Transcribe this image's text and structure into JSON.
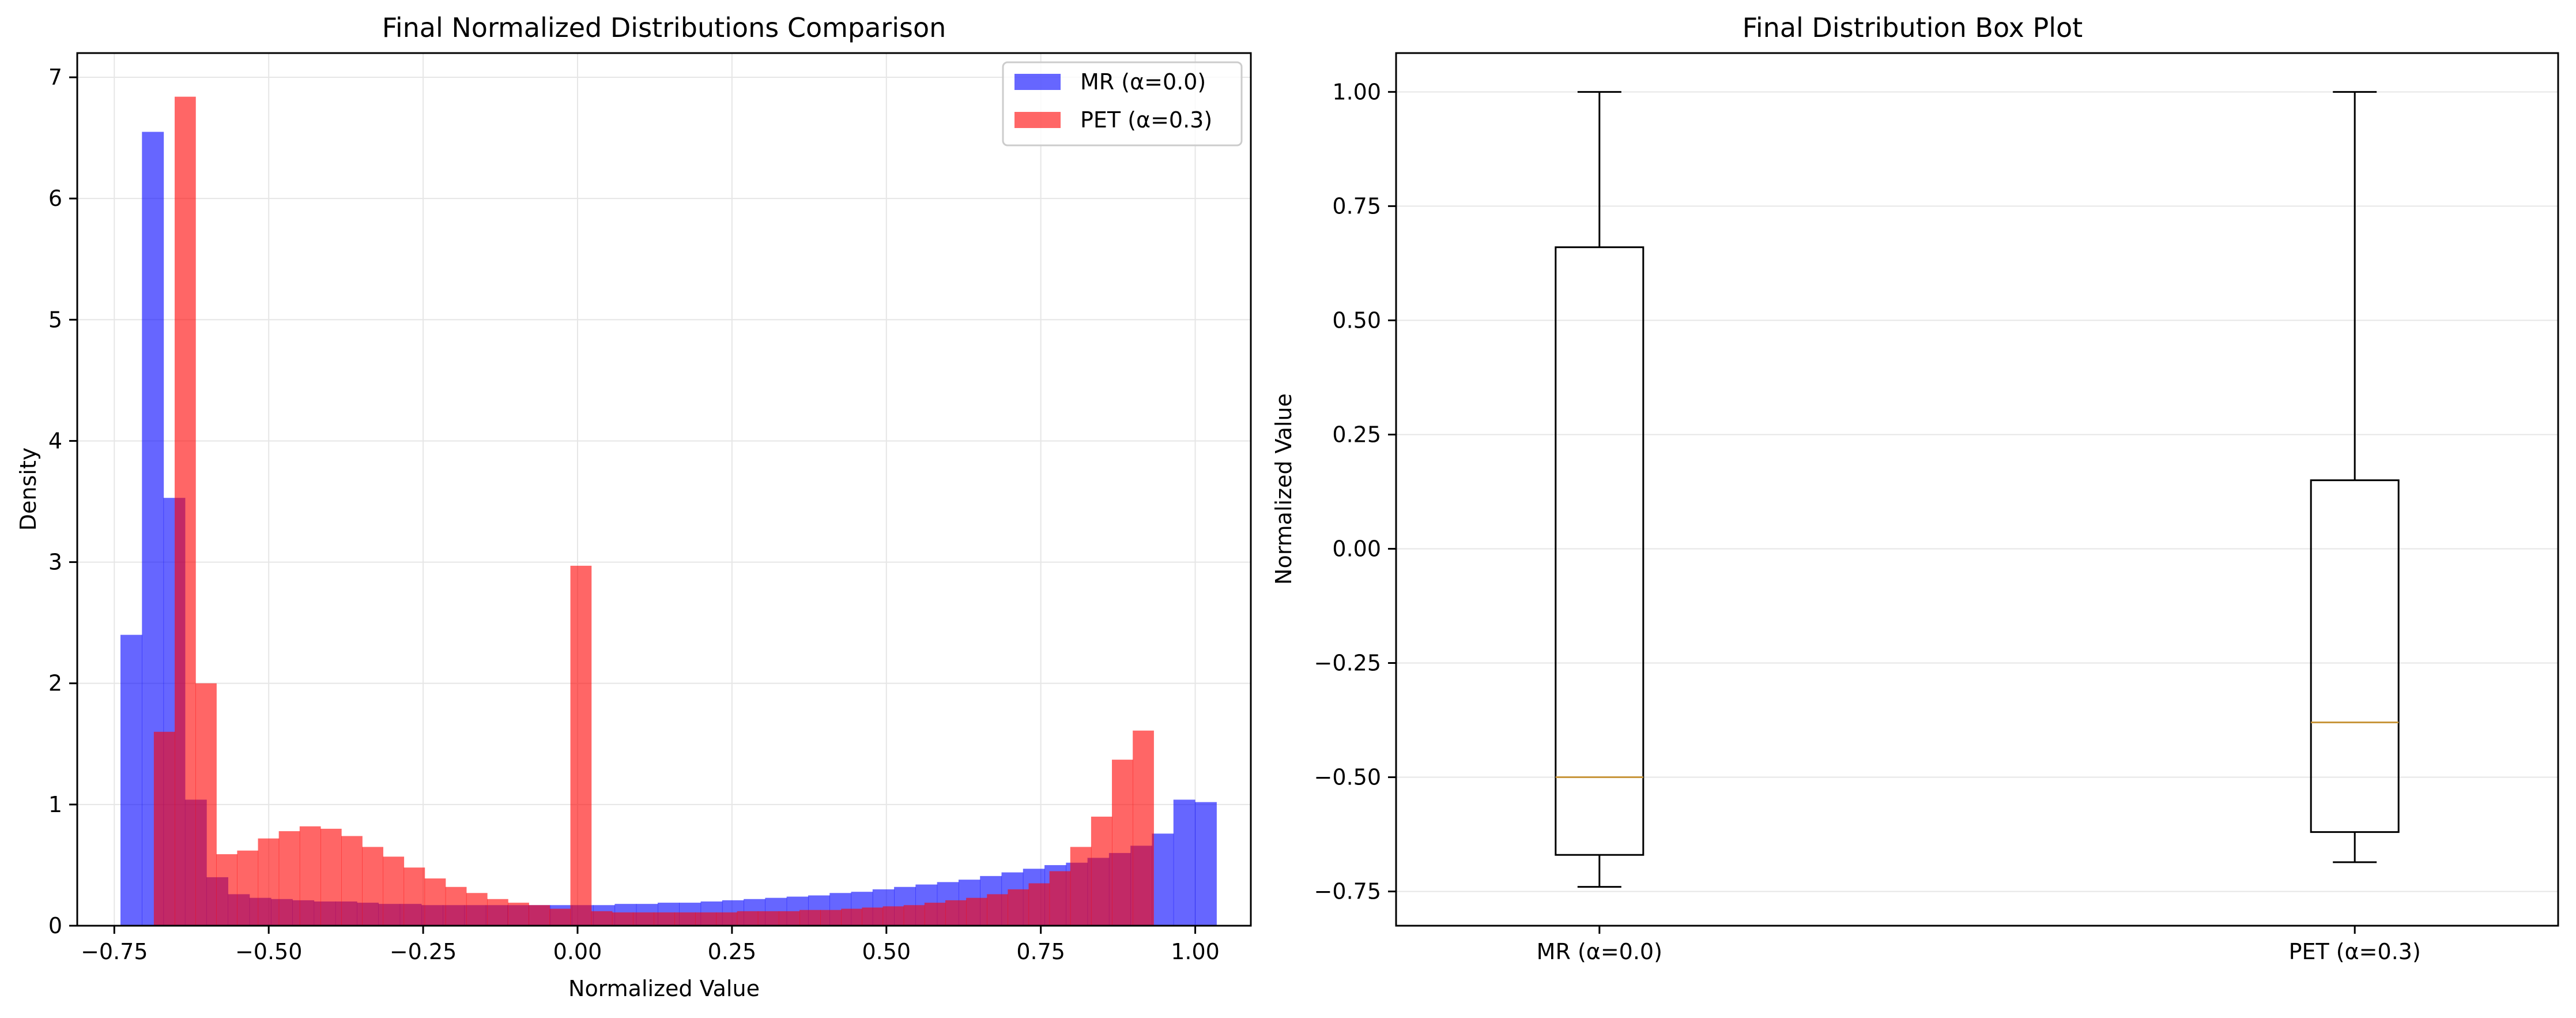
{
  "chart_data": [
    {
      "type": "bar",
      "subtype": "histogram",
      "title": "Final Normalized Distributions Comparison",
      "xlabel": "Normalized Value",
      "ylabel": "Density",
      "xlim": [
        -0.81,
        1.09
      ],
      "ylim": [
        0,
        7.2
      ],
      "xticks": [
        -0.75,
        -0.5,
        -0.25,
        0.0,
        0.25,
        0.5,
        0.75,
        1.0
      ],
      "xtick_labels": [
        "−0.75",
        "−0.50",
        "−0.25",
        "0.00",
        "0.25",
        "0.50",
        "0.75",
        "1.00"
      ],
      "yticks": [
        0,
        1,
        2,
        3,
        4,
        5,
        6,
        7
      ],
      "ytick_labels": [
        "0",
        "1",
        "2",
        "3",
        "4",
        "5",
        "6",
        "7"
      ],
      "grid": true,
      "legend_position": "top-right",
      "series": [
        {
          "name": "MR (α=0.0)",
          "color": "#0000ff",
          "opacity": 0.6,
          "bin_start": -0.74,
          "bin_width": 0.03479,
          "values": [
            2.4,
            6.55,
            3.53,
            1.04,
            0.4,
            0.26,
            0.23,
            0.22,
            0.21,
            0.2,
            0.2,
            0.19,
            0.18,
            0.18,
            0.17,
            0.17,
            0.17,
            0.17,
            0.17,
            0.17,
            0.17,
            0.17,
            0.17,
            0.18,
            0.18,
            0.19,
            0.19,
            0.2,
            0.21,
            0.22,
            0.23,
            0.24,
            0.25,
            0.27,
            0.28,
            0.3,
            0.32,
            0.34,
            0.36,
            0.38,
            0.41,
            0.44,
            0.47,
            0.5,
            0.52,
            0.56,
            0.6,
            0.66,
            0.76,
            1.04,
            1.02
          ]
        },
        {
          "name": "PET (α=0.3)",
          "color": "#ff0000",
          "opacity": 0.6,
          "bin_start": -0.686,
          "bin_width": 0.03372,
          "values": [
            1.6,
            6.84,
            2.0,
            0.59,
            0.62,
            0.72,
            0.78,
            0.82,
            0.8,
            0.74,
            0.65,
            0.57,
            0.48,
            0.39,
            0.32,
            0.27,
            0.22,
            0.19,
            0.17,
            0.14,
            2.97,
            0.12,
            0.11,
            0.11,
            0.11,
            0.11,
            0.11,
            0.11,
            0.12,
            0.12,
            0.12,
            0.13,
            0.13,
            0.14,
            0.15,
            0.16,
            0.17,
            0.19,
            0.21,
            0.23,
            0.26,
            0.3,
            0.35,
            0.45,
            0.65,
            0.9,
            1.37,
            1.61
          ]
        }
      ],
      "legend": [
        "MR (α=0.0)",
        "PET (α=0.3)"
      ]
    },
    {
      "type": "box",
      "title": "Final Distribution Box Plot",
      "xlabel": "",
      "ylabel": "Normalized Value",
      "ylim": [
        -0.825,
        1.085
      ],
      "yticks": [
        -0.75,
        -0.5,
        -0.25,
        0.0,
        0.25,
        0.5,
        0.75,
        1.0
      ],
      "ytick_labels": [
        "−0.75",
        "−0.50",
        "−0.25",
        "0.00",
        "0.25",
        "0.50",
        "0.75",
        "1.00"
      ],
      "grid": true,
      "median_color": "#c8963c",
      "categories": [
        "MR (α=0.0)",
        "PET (α=0.3)"
      ],
      "boxes": [
        {
          "label": "MR (α=0.0)",
          "whisker_low": -0.74,
          "q1": -0.67,
          "median": -0.5,
          "q3": 0.66,
          "whisker_high": 1.0
        },
        {
          "label": "PET (α=0.3)",
          "whisker_low": -0.686,
          "q1": -0.62,
          "median": -0.38,
          "q3": 0.15,
          "whisker_high": 1.0
        }
      ]
    }
  ]
}
